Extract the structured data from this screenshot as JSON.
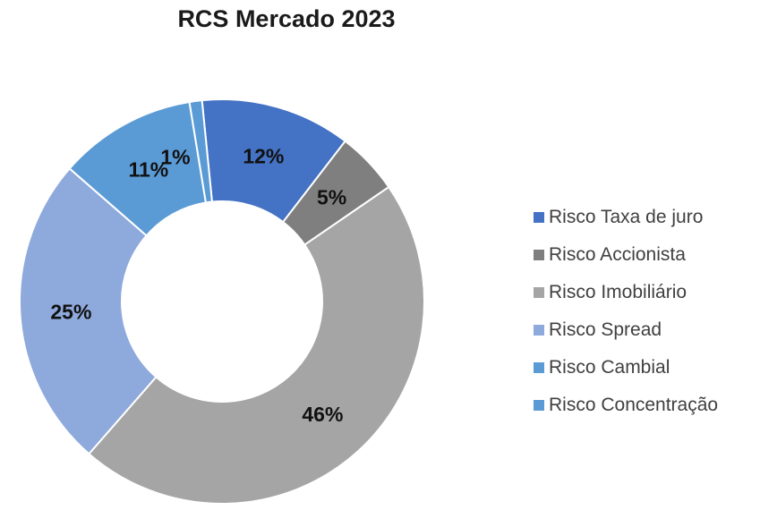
{
  "chart_data": {
    "type": "pie",
    "title": "RCS Mercado 2023",
    "categories": [
      "Risco Taxa de juro",
      "Risco Accionista",
      "Risco Imobiliário",
      "Risco Spread",
      "Risco Cambial",
      "Risco Concentração"
    ],
    "values": [
      12,
      5,
      46,
      25,
      11,
      1
    ],
    "data_labels": [
      "12%",
      "5%",
      "46%",
      "25%",
      "11%",
      "1%"
    ],
    "unit": "%",
    "colors": [
      "#4472C4",
      "#7F7F7F",
      "#A5A5A5",
      "#8EA9DB",
      "#5B9BD5",
      "#5B9BD5"
    ],
    "donut": true,
    "legend": "right"
  }
}
